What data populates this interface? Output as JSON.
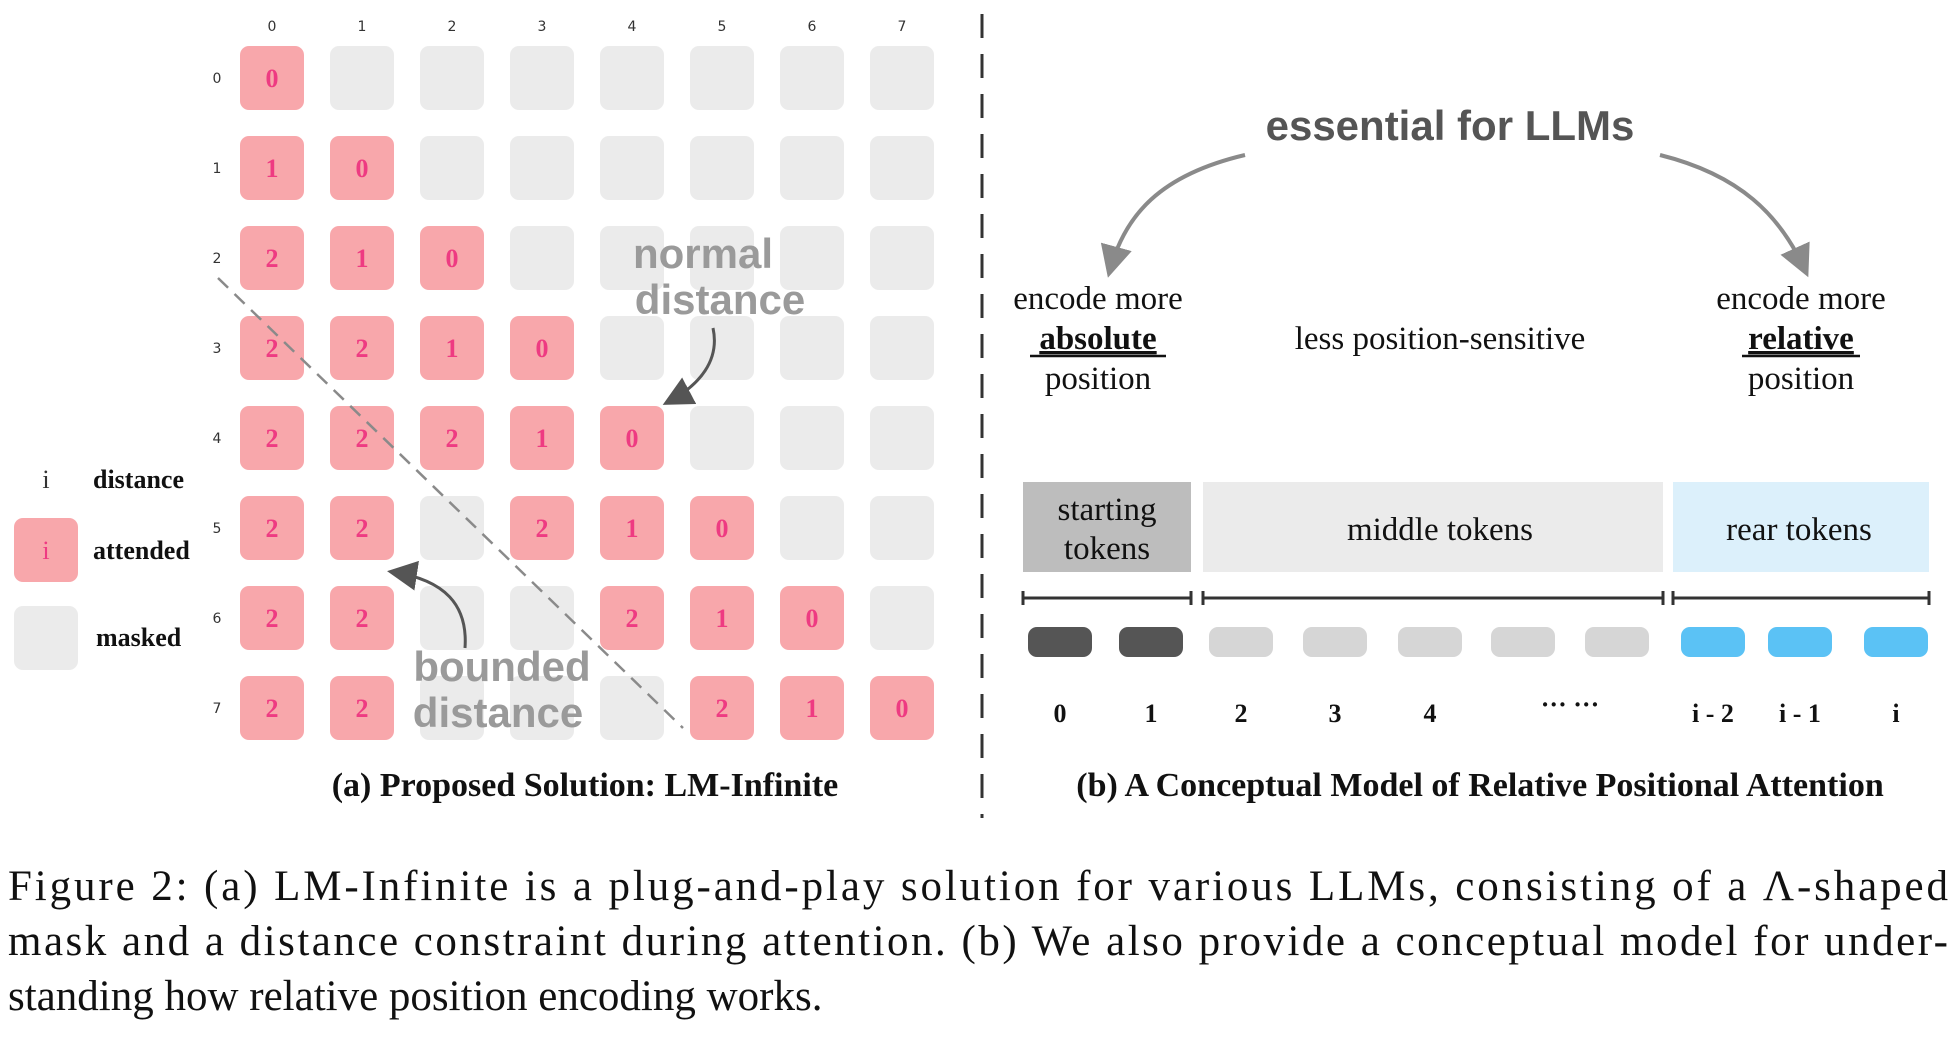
{
  "panel_a": {
    "axis_labels": [
      "0",
      "1",
      "2",
      "3",
      "4",
      "5",
      "6",
      "7"
    ],
    "cells": [
      [
        0,
        null,
        null,
        null,
        null,
        null,
        null,
        null
      ],
      [
        1,
        0,
        null,
        null,
        null,
        null,
        null,
        null
      ],
      [
        2,
        1,
        0,
        null,
        null,
        null,
        null,
        null
      ],
      [
        2,
        2,
        1,
        0,
        null,
        null,
        null,
        null
      ],
      [
        2,
        2,
        2,
        1,
        0,
        null,
        null,
        null
      ],
      [
        2,
        2,
        null,
        2,
        1,
        0,
        null,
        null
      ],
      [
        2,
        2,
        null,
        null,
        2,
        1,
        0,
        null
      ],
      [
        2,
        2,
        null,
        null,
        null,
        2,
        1,
        0
      ]
    ],
    "legend": {
      "distance_symbol": "i",
      "distance_label": "distance",
      "attended_symbol": "i",
      "attended_label": "attended",
      "masked_label": "masked"
    },
    "annotations": {
      "normal_distance": [
        "normal",
        "distance"
      ],
      "bounded_distance": [
        "bounded",
        "distance"
      ]
    },
    "caption": "(a) Proposed Solution: LM-Infinite"
  },
  "panel_b": {
    "top_label": "essential for LLMs",
    "left_label": [
      "encode more",
      "absolute",
      "position"
    ],
    "center_label": "less position-sensitive",
    "right_label": [
      "encode more",
      "relative",
      "position"
    ],
    "segments": [
      {
        "label": [
          "starting",
          "tokens"
        ],
        "color": "#bdbdbd"
      },
      {
        "label": [
          "middle tokens"
        ],
        "color": "#ebebeb"
      },
      {
        "label": [
          "rear tokens"
        ],
        "color": "#dcf0fb"
      }
    ],
    "token_labels": [
      "0",
      "1",
      "2",
      "3",
      "4",
      "··· ···",
      "i - 2",
      "i - 1",
      "i"
    ],
    "caption": "(b) A Conceptual Model of Relative Positional Attention"
  },
  "colors": {
    "attended": "#f8a7ab",
    "attended_text": "#ee3b82",
    "masked": "#ebebeb",
    "token_dark": "#555555",
    "token_mid": "#d6d6d6",
    "token_blue": "#5bc2f5",
    "annotation_gray": "#9a9a9a"
  },
  "figure_caption": [
    "Figure 2: (a) LM-Infinite is a plug-and-play solution for various LLMs, consisting of a Λ-shaped",
    "mask and a distance constraint during attention. (b) We also provide a conceptual model for under-",
    "standing how relative position encoding works."
  ]
}
